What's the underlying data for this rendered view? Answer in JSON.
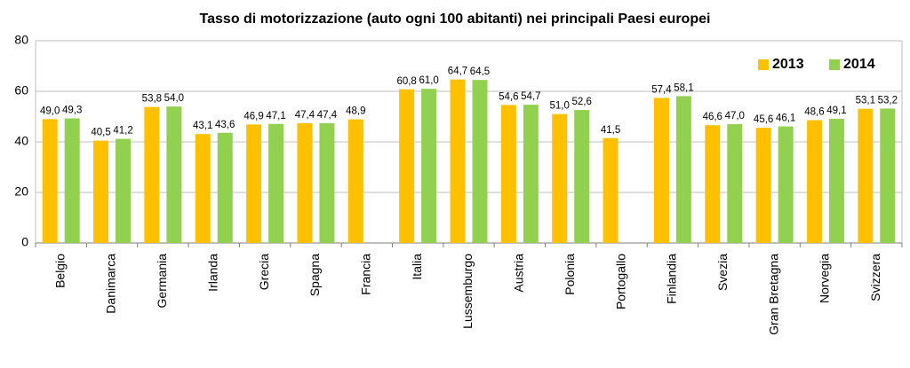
{
  "chart_data": {
    "type": "bar",
    "title": "Tasso di motorizzazione (auto ogni 100 abitanti) nei principali Paesi europei",
    "categories": [
      "Belgio",
      "Danimarca",
      "Germania",
      "Irlanda",
      "Grecia",
      "Spagna",
      "Francia",
      "Italia",
      "Lussemburgo",
      "Austria",
      "Polonia",
      "Portogallo",
      "Finlandia",
      "Svezia",
      "Gran Bretagna",
      "Norvegia",
      "Svizzera"
    ],
    "series": [
      {
        "name": "2013",
        "color": "#ffc000",
        "values": [
          49.0,
          40.5,
          53.8,
          43.1,
          46.9,
          47.4,
          48.9,
          60.8,
          64.7,
          54.6,
          51.0,
          41.5,
          57.4,
          46.6,
          45.6,
          48.6,
          53.1
        ],
        "value_labels": [
          "49,0",
          "40,5",
          "53,8",
          "43,1",
          "46,9",
          "47,4",
          "48,9",
          "60,8",
          "64,7",
          "54,6",
          "51,0",
          "41,5",
          "57,4",
          "46,6",
          "45,6",
          "48,6",
          "53,1"
        ]
      },
      {
        "name": "2014",
        "color": "#92d050",
        "values": [
          49.3,
          41.2,
          54.0,
          43.6,
          47.1,
          47.4,
          null,
          61.0,
          64.5,
          54.7,
          52.6,
          null,
          58.1,
          47.0,
          46.1,
          49.1,
          53.2
        ],
        "value_labels": [
          "49,3",
          "41,2",
          "54,0",
          "43,6",
          "47,1",
          "47,4",
          null,
          "61,0",
          "64,5",
          "54,7",
          "52,6",
          null,
          "58,1",
          "47,0",
          "46,1",
          "49,1",
          "53,2"
        ]
      }
    ],
    "ylim": [
      0,
      80
    ],
    "yticks": [
      0,
      20,
      40,
      60,
      80
    ],
    "grid": true,
    "legend": "upper right"
  }
}
